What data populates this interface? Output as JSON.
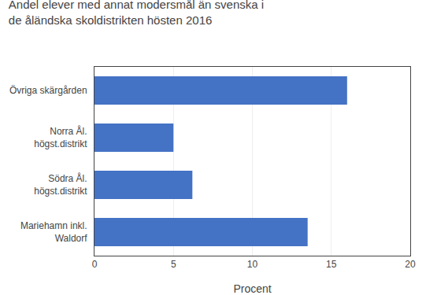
{
  "chart_data": {
    "type": "bar",
    "orientation": "horizontal",
    "title": "Andel elever med annat modersmål än svenska i\nde åländska skoldistrikten hösten 2016",
    "categories": [
      "Mariehamn inkl.\nWaldorf",
      "Södra Ål.\nhögst.distrikt",
      "Norra Ål.\nhögst.distrikt",
      "Övriga skärgården"
    ],
    "values": [
      13.5,
      6.2,
      5.0,
      16.0
    ],
    "color": "#4472c4",
    "xlabel": "Procent",
    "xlim": [
      0,
      20
    ],
    "xticks": [
      0,
      5,
      10,
      15,
      20
    ],
    "grid": true
  }
}
